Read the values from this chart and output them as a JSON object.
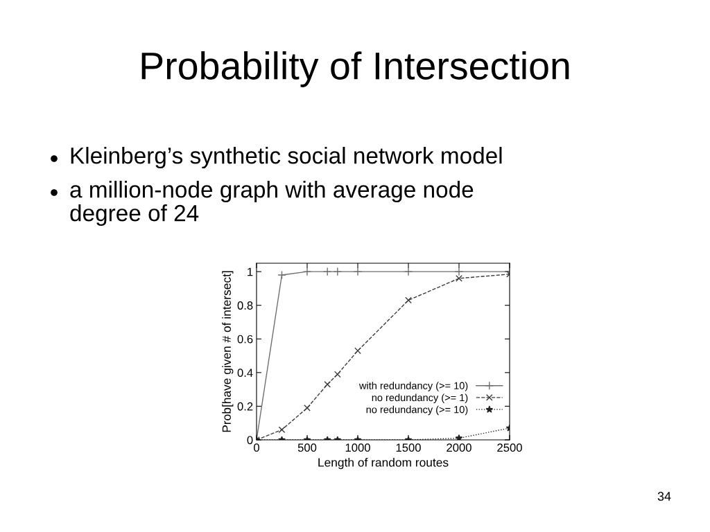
{
  "chart_data": {
    "type": "line",
    "title": "Probability of Intersection",
    "annotations": [
      "Kleinberg’s synthetic social network model",
      "a million-node graph with average node\ndegree of 24",
      "34"
    ],
    "xlabel": "Length of random routes",
    "ylabel": "Prob[have given # of intersect]",
    "x": [
      0,
      250,
      500,
      700,
      800,
      1000,
      1500,
      2000,
      2500
    ],
    "series": [
      {
        "name": "with redundancy (>= 10)",
        "color": "#6e6e6e",
        "marker": "plus",
        "line_style": "solid",
        "values": [
          0,
          0.98,
          1,
          1,
          1,
          1,
          1,
          1,
          1
        ]
      },
      {
        "name": "no redundancy (>= 1)",
        "color": "#3a3a3a",
        "marker": "cross",
        "line_style": "dashed",
        "values": [
          0,
          0.06,
          0.19,
          0.33,
          0.39,
          0.53,
          0.83,
          0.96,
          0.985
        ]
      },
      {
        "name": "no redundancy (>= 10)",
        "color": "#222222",
        "marker": "star",
        "line_style": "dotted",
        "values": [
          0,
          0,
          0,
          0,
          0,
          0,
          0,
          0.01,
          0.07
        ]
      }
    ],
    "xlim": [
      0,
      2500
    ],
    "ylim": [
      0,
      1.05
    ],
    "xticks": [
      0,
      500,
      1000,
      1500,
      2000,
      2500
    ],
    "yticks": [
      0,
      0.2,
      0.4,
      0.6,
      0.8,
      1
    ],
    "legend": "lower right"
  }
}
